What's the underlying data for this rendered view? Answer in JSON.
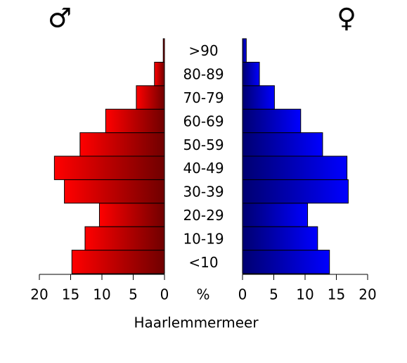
{
  "chart_data": {
    "type": "pyramid",
    "title": "Haarlemmermeer",
    "unit_label": "%",
    "categories": [
      "<10",
      "10-19",
      "20-29",
      "30-39",
      "40-49",
      "50-59",
      "60-69",
      "70-79",
      "80-89",
      ">90"
    ],
    "series": [
      {
        "name": "♂",
        "color": "#ff0000",
        "values": [
          14.8,
          12.7,
          10.4,
          16.0,
          17.6,
          13.5,
          9.4,
          4.5,
          1.6,
          0.2
        ]
      },
      {
        "name": "♀",
        "color": "#0000ff",
        "values": [
          13.9,
          12.0,
          10.4,
          16.9,
          16.7,
          12.8,
          9.3,
          5.1,
          2.7,
          0.6
        ]
      }
    ],
    "xlim": [
      0,
      20
    ],
    "xticks": [
      0,
      5,
      10,
      15,
      20
    ]
  }
}
